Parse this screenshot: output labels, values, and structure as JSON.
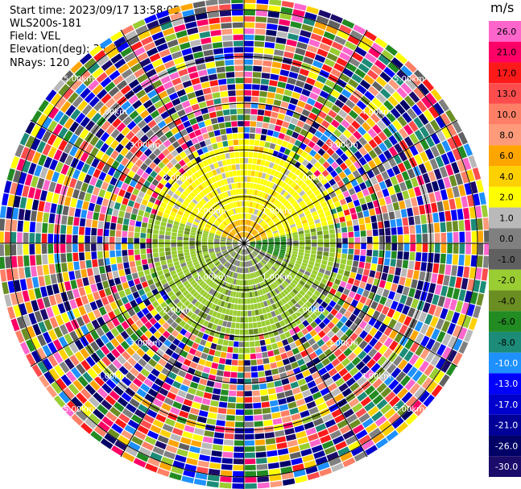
{
  "header": {
    "start_time": "Start time: 2023/09/17 13:58:05",
    "instrument": "WLS200s-181",
    "field": "Field: VEL",
    "elevation": "Elevation(deg): 35.30",
    "nrays": "NRays: 120"
  },
  "chart_data": {
    "type": "heatmap",
    "projection": "polar PPI",
    "ring_labels": [
      "1.00km",
      "2.00km",
      "3.00km",
      "4.00km",
      "5.00km"
    ],
    "range_rings_km": [
      1,
      2,
      3,
      4,
      5
    ],
    "n_rays": 120,
    "colorbar": {
      "unit": "m/s",
      "ticks": [
        "26.0",
        "21.0",
        "17.0",
        "13.0",
        "10.0",
        "8.0",
        "6.0",
        "4.0",
        "2.0",
        "1.0",
        "0.0",
        "-1.0",
        "-2.0",
        "-4.0",
        "-6.0",
        "-8.0",
        "-10.0",
        "-13.0",
        "-17.0",
        "-21.0",
        "-26.0",
        "-30.0"
      ],
      "colors": [
        "#ff66cc",
        "#ff0066",
        "#ff1a1a",
        "#ff4d4d",
        "#ff7f66",
        "#ff9a7a",
        "#ffa500",
        "#ffd000",
        "#ffff00",
        "#b9b9b9",
        "#808080",
        "#606060",
        "#9acd32",
        "#6b8e23",
        "#228b22",
        "#1c8c78",
        "#1e90ff",
        "#0000ff",
        "#0000cd",
        "#000099",
        "#000066",
        "#1b0b6b"
      ]
    }
  }
}
